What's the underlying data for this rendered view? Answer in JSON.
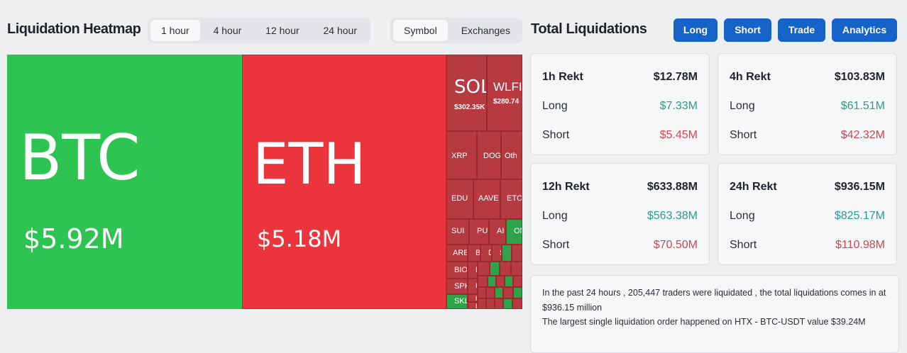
{
  "heatmap": {
    "title": "Liquidation Heatmap",
    "time_tabs": [
      "1 hour",
      "4 hour",
      "12 hour",
      "24 hour"
    ],
    "active_time_tab": "1 hour",
    "view_tabs": [
      "Symbol",
      "Exchanges"
    ],
    "active_view_tab": "Symbol",
    "colors": {
      "long_dominant": "#2ec452",
      "short_dominant": "#eb343b"
    },
    "tiles": {
      "btc": {
        "symbol": "BTC",
        "value": "$5.92M"
      },
      "eth": {
        "symbol": "ETH",
        "value": "$5.18M"
      },
      "sol": {
        "symbol": "SOL",
        "value": "$302.35K"
      },
      "wlfi": {
        "symbol": "WLFI",
        "value": "$280.74"
      },
      "small": [
        "XRP",
        "DOG",
        "Oth",
        "EDU",
        "AAVE",
        "ETC",
        "SUI",
        "PU",
        "AI",
        "ON",
        "ARE",
        "BI",
        "D",
        "S",
        "BIO",
        "E",
        "SPK",
        "U",
        "SKL",
        "H",
        "B"
      ]
    }
  },
  "total": {
    "title": "Total Liquidations",
    "buttons": [
      "Long",
      "Short",
      "Trade",
      "Analytics"
    ],
    "cards": [
      {
        "label": "1h Rekt",
        "total": "$12.78M",
        "long_label": "Long",
        "long": "$7.33M",
        "short_label": "Short",
        "short": "$5.45M"
      },
      {
        "label": "4h Rekt",
        "total": "$103.83M",
        "long_label": "Long",
        "long": "$61.51M",
        "short_label": "Short",
        "short": "$42.32M"
      },
      {
        "label": "12h Rekt",
        "total": "$633.88M",
        "long_label": "Long",
        "long": "$563.38M",
        "short_label": "Short",
        "short": "$70.50M"
      },
      {
        "label": "24h Rekt",
        "total": "$936.15M",
        "long_label": "Long",
        "long": "$825.17M",
        "short_label": "Short",
        "short": "$110.98M"
      }
    ],
    "summary": {
      "line1": "In the past 24 hours , 205,447 traders were liquidated , the total liquidations comes in at $936.15 million",
      "line2": "The largest single liquidation order happened on HTX - BTC-USDT value $39.24M"
    }
  }
}
